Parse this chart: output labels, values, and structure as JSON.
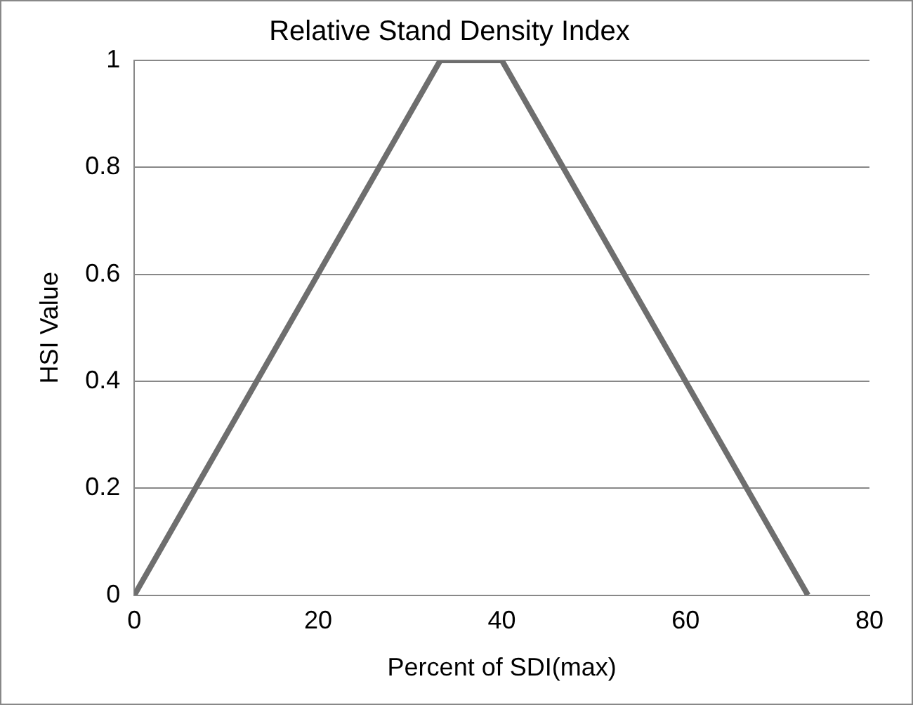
{
  "chart_data": {
    "type": "line",
    "title": "Relative Stand Density Index",
    "xlabel": "Percent of SDI(max)",
    "ylabel": "HSI Value",
    "x": [
      0,
      33.3,
      40,
      73.3
    ],
    "series": [
      {
        "color": "#6e6e6e",
        "values": [
          0,
          1,
          1,
          0
        ]
      }
    ],
    "xlim": [
      0,
      80
    ],
    "xticks": [
      0,
      20,
      40,
      60,
      80
    ],
    "ylim": [
      0,
      1
    ],
    "yticks": [
      0,
      0.2,
      0.4,
      0.6,
      0.8,
      1
    ],
    "grid": "y",
    "legend": false,
    "marker": "none",
    "line_style": "solid"
  }
}
